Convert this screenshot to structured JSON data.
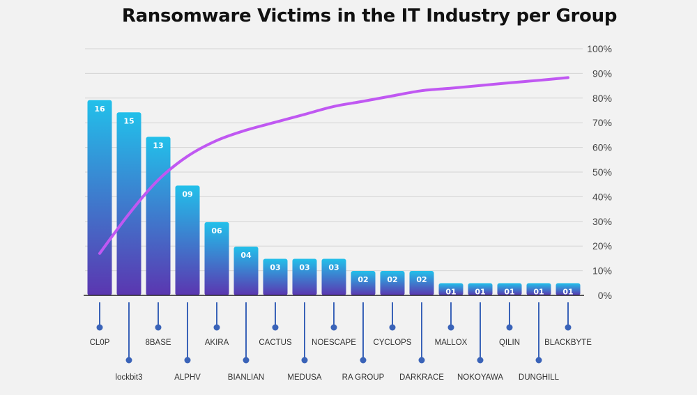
{
  "chart_data": {
    "type": "bar",
    "title": "Ransomware Victims in the IT Industry per Group",
    "categories": [
      "CL0P",
      "lockbit3",
      "8BASE",
      "ALPHV",
      "AKIRA",
      "BIANLIAN",
      "CACTUS",
      "MEDUSA",
      "NOESCAPE",
      "RA GROUP",
      "CYCLOPS",
      "DARKRACE",
      "MALLOX",
      "NOKOYAWA",
      "QILIN",
      "DUNGHILL",
      "BLACKBYTE"
    ],
    "values": [
      16,
      15,
      13,
      9,
      6,
      4,
      3,
      3,
      3,
      2,
      2,
      2,
      1,
      1,
      1,
      1,
      1
    ],
    "value_labels": [
      "16",
      "15",
      "13",
      "09",
      "06",
      "04",
      "03",
      "03",
      "03",
      "02",
      "02",
      "02",
      "01",
      "01",
      "01",
      "01",
      "01"
    ],
    "series": [
      {
        "values": [
          16,
          15,
          13,
          9,
          6,
          4,
          3,
          3,
          3,
          2,
          2,
          2,
          1,
          1,
          1,
          1,
          1
        ]
      },
      {
        "type": "line",
        "axis": "right",
        "values": [
          17.0,
          33.0,
          46.8,
          56.4,
          62.8,
          67.0,
          70.2,
          73.4,
          76.6,
          78.7,
          80.9,
          83.0,
          84.0,
          85.1,
          86.2,
          87.2,
          88.3
        ]
      }
    ],
    "y2_ticks": [
      "0%",
      "10%",
      "20%",
      "30%",
      "40%",
      "50%",
      "60%",
      "70%",
      "80%",
      "90%",
      "100%"
    ],
    "y2lim": [
      0,
      100
    ],
    "ylim": [
      0,
      18.5
    ],
    "xlabel": "",
    "ylabel": "",
    "grid": true,
    "colors": {
      "bar_top": "#22c0ea",
      "bar_bottom": "#5b36b0",
      "line": "#c058f2",
      "lollipop": "#3a63b8",
      "grid": "#d4d4d4",
      "axis": "#222222"
    }
  }
}
